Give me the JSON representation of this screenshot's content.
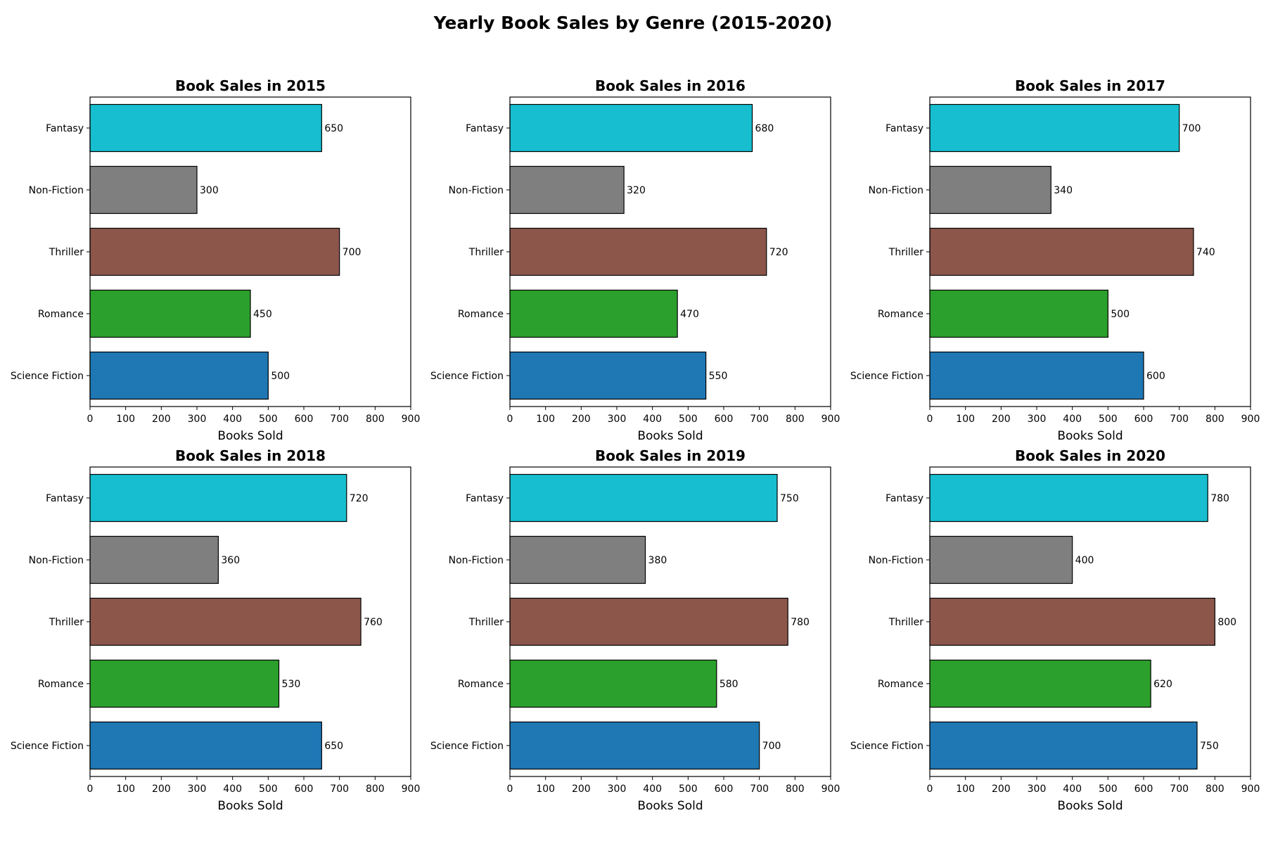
{
  "figure": {
    "title": "Yearly Book Sales by Genre (2015-2020)"
  },
  "series_colors": {
    "Fantasy": "#17becf",
    "Non-Fiction": "#7f7f7f",
    "Thriller": "#8c564b",
    "Romance": "#2ca02c",
    "Science Fiction": "#1f77b4"
  },
  "chart_data": [
    {
      "type": "bar",
      "orientation": "horizontal",
      "title": "Book Sales in 2015",
      "xlabel": "Books Sold",
      "ylabel": "",
      "categories": [
        "Fantasy",
        "Non-Fiction",
        "Thriller",
        "Romance",
        "Science Fiction"
      ],
      "values": [
        650,
        300,
        700,
        450,
        500
      ],
      "xlim": [
        0,
        900
      ],
      "xticks": [
        0,
        100,
        200,
        300,
        400,
        500,
        600,
        700,
        800,
        900
      ],
      "grid": false
    },
    {
      "type": "bar",
      "orientation": "horizontal",
      "title": "Book Sales in 2016",
      "xlabel": "Books Sold",
      "ylabel": "",
      "categories": [
        "Fantasy",
        "Non-Fiction",
        "Thriller",
        "Romance",
        "Science Fiction"
      ],
      "values": [
        680,
        320,
        720,
        470,
        550
      ],
      "xlim": [
        0,
        900
      ],
      "xticks": [
        0,
        100,
        200,
        300,
        400,
        500,
        600,
        700,
        800,
        900
      ],
      "grid": false
    },
    {
      "type": "bar",
      "orientation": "horizontal",
      "title": "Book Sales in 2017",
      "xlabel": "Books Sold",
      "ylabel": "",
      "categories": [
        "Fantasy",
        "Non-Fiction",
        "Thriller",
        "Romance",
        "Science Fiction"
      ],
      "values": [
        700,
        340,
        740,
        500,
        600
      ],
      "xlim": [
        0,
        900
      ],
      "xticks": [
        0,
        100,
        200,
        300,
        400,
        500,
        600,
        700,
        800,
        900
      ],
      "grid": false
    },
    {
      "type": "bar",
      "orientation": "horizontal",
      "title": "Book Sales in 2018",
      "xlabel": "Books Sold",
      "ylabel": "",
      "categories": [
        "Fantasy",
        "Non-Fiction",
        "Thriller",
        "Romance",
        "Science Fiction"
      ],
      "values": [
        720,
        360,
        760,
        530,
        650
      ],
      "xlim": [
        0,
        900
      ],
      "xticks": [
        0,
        100,
        200,
        300,
        400,
        500,
        600,
        700,
        800,
        900
      ],
      "grid": false
    },
    {
      "type": "bar",
      "orientation": "horizontal",
      "title": "Book Sales in 2019",
      "xlabel": "Books Sold",
      "ylabel": "",
      "categories": [
        "Fantasy",
        "Non-Fiction",
        "Thriller",
        "Romance",
        "Science Fiction"
      ],
      "values": [
        750,
        380,
        780,
        580,
        700
      ],
      "xlim": [
        0,
        900
      ],
      "xticks": [
        0,
        100,
        200,
        300,
        400,
        500,
        600,
        700,
        800,
        900
      ],
      "grid": false
    },
    {
      "type": "bar",
      "orientation": "horizontal",
      "title": "Book Sales in 2020",
      "xlabel": "Books Sold",
      "ylabel": "",
      "categories": [
        "Fantasy",
        "Non-Fiction",
        "Thriller",
        "Romance",
        "Science Fiction"
      ],
      "values": [
        780,
        400,
        800,
        620,
        750
      ],
      "xlim": [
        0,
        900
      ],
      "xticks": [
        0,
        100,
        200,
        300,
        400,
        500,
        600,
        700,
        800,
        900
      ],
      "grid": false
    }
  ]
}
